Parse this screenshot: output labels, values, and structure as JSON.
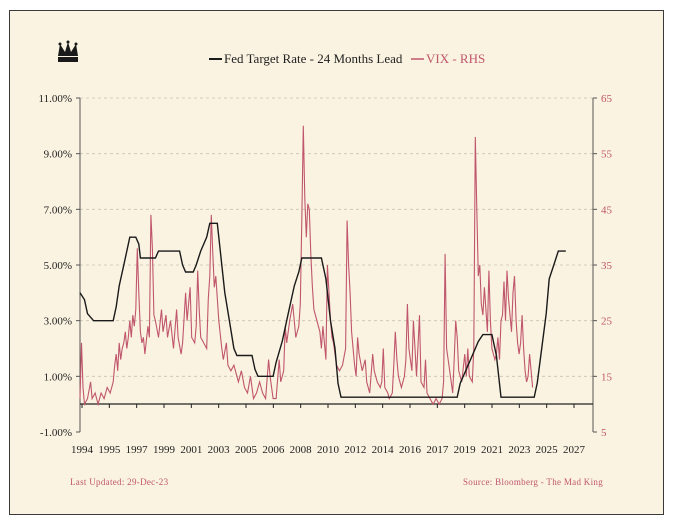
{
  "chart_data": {
    "type": "line",
    "legend": {
      "fed_label": "Fed Target Rate - 24 Months Lead",
      "vix_label": "VIX - RHS",
      "placement": "top-center"
    },
    "footer": {
      "last_updated": "Last Updated:  29-Dec-23",
      "source": "Source: Bloomberg - The Mad King"
    },
    "logo": "crown-icon",
    "colors": {
      "fed": "#1a1a1a",
      "vix": "#c0566c",
      "background": "#faf3e1"
    },
    "grid": "horizontal-dashed",
    "x_axis": {
      "range": [
        1994,
        2028
      ],
      "ticks": [
        "1994",
        "1995",
        "1997",
        "1999",
        "2001",
        "2003",
        "2005",
        "2006",
        "2008",
        "2010",
        "2012",
        "2014",
        "2016",
        "2017",
        "2019",
        "2021",
        "2023",
        "2025",
        "2027"
      ]
    },
    "y_left": {
      "range": [
        -1.0,
        11.0
      ],
      "ticks": [
        11,
        9,
        7,
        5,
        3,
        1,
        -1
      ],
      "tick_labels": [
        "11.00%",
        "9.00%",
        "7.00%",
        "5.00%",
        "3.00%",
        "1.00%",
        "-1.00%"
      ]
    },
    "y_right": {
      "range": [
        5,
        65
      ],
      "ticks": [
        65,
        55,
        45,
        35,
        25,
        15,
        5
      ],
      "tick_labels": [
        "65",
        "55",
        "45",
        "35",
        "25",
        "15",
        "5"
      ]
    },
    "series": [
      {
        "name": "Fed Target Rate - 24 Months Lead",
        "axis": "left",
        "points": [
          [
            1994.0,
            4.0
          ],
          [
            1994.3,
            3.75
          ],
          [
            1994.5,
            3.25
          ],
          [
            1994.9,
            3.0
          ],
          [
            1996.2,
            3.0
          ],
          [
            1996.4,
            3.5
          ],
          [
            1996.6,
            4.25
          ],
          [
            1996.9,
            5.0
          ],
          [
            1997.1,
            5.5
          ],
          [
            1997.3,
            6.0
          ],
          [
            1997.7,
            6.0
          ],
          [
            1997.9,
            5.75
          ],
          [
            1998.0,
            5.25
          ],
          [
            1999.0,
            5.25
          ],
          [
            1999.2,
            5.5
          ],
          [
            2000.6,
            5.5
          ],
          [
            2000.8,
            5.0
          ],
          [
            2001.0,
            4.75
          ],
          [
            2001.5,
            4.75
          ],
          [
            2001.7,
            5.0
          ],
          [
            2002.0,
            5.5
          ],
          [
            2002.4,
            6.0
          ],
          [
            2002.6,
            6.5
          ],
          [
            2003.1,
            6.5
          ],
          [
            2003.3,
            5.5
          ],
          [
            2003.6,
            4.0
          ],
          [
            2003.9,
            3.0
          ],
          [
            2004.2,
            2.0
          ],
          [
            2004.4,
            1.75
          ],
          [
            2005.4,
            1.75
          ],
          [
            2005.6,
            1.25
          ],
          [
            2005.8,
            1.0
          ],
          [
            2006.8,
            1.0
          ],
          [
            2007.0,
            1.5
          ],
          [
            2007.4,
            2.25
          ],
          [
            2007.8,
            3.25
          ],
          [
            2008.2,
            4.25
          ],
          [
            2008.5,
            4.75
          ],
          [
            2008.7,
            5.25
          ],
          [
            2010.0,
            5.25
          ],
          [
            2010.3,
            4.5
          ],
          [
            2010.6,
            3.0
          ],
          [
            2010.9,
            2.0
          ],
          [
            2011.1,
            0.75
          ],
          [
            2011.3,
            0.25
          ],
          [
            2019.0,
            0.25
          ],
          [
            2019.2,
            0.75
          ],
          [
            2019.6,
            1.25
          ],
          [
            2020.0,
            1.75
          ],
          [
            2020.4,
            2.25
          ],
          [
            2020.7,
            2.5
          ],
          [
            2021.3,
            2.5
          ],
          [
            2021.6,
            1.75
          ],
          [
            2021.9,
            0.25
          ],
          [
            2024.1,
            0.25
          ],
          [
            2024.3,
            0.75
          ],
          [
            2024.6,
            2.0
          ],
          [
            2024.9,
            3.25
          ],
          [
            2025.1,
            4.5
          ],
          [
            2025.4,
            5.0
          ],
          [
            2025.7,
            5.5
          ],
          [
            2026.2,
            5.5
          ]
        ]
      },
      {
        "name": "VIX - RHS",
        "axis": "right",
        "points": [
          [
            1994.0,
            11
          ],
          [
            1994.1,
            21
          ],
          [
            1994.2,
            13
          ],
          [
            1994.3,
            10
          ],
          [
            1994.5,
            11
          ],
          [
            1994.7,
            14
          ],
          [
            1994.8,
            11
          ],
          [
            1995.0,
            12
          ],
          [
            1995.2,
            10
          ],
          [
            1995.4,
            12
          ],
          [
            1995.6,
            11
          ],
          [
            1995.8,
            13
          ],
          [
            1996.0,
            12
          ],
          [
            1996.2,
            14
          ],
          [
            1996.3,
            17
          ],
          [
            1996.4,
            19
          ],
          [
            1996.5,
            16
          ],
          [
            1996.6,
            21
          ],
          [
            1996.7,
            18
          ],
          [
            1996.8,
            20
          ],
          [
            1996.9,
            21
          ],
          [
            1997.0,
            23
          ],
          [
            1997.1,
            20
          ],
          [
            1997.2,
            22
          ],
          [
            1997.3,
            25
          ],
          [
            1997.4,
            22
          ],
          [
            1997.5,
            26
          ],
          [
            1997.6,
            24
          ],
          [
            1997.7,
            27
          ],
          [
            1997.8,
            38
          ],
          [
            1997.9,
            30
          ],
          [
            1998.0,
            23
          ],
          [
            1998.1,
            21
          ],
          [
            1998.2,
            22
          ],
          [
            1998.3,
            19
          ],
          [
            1998.5,
            24
          ],
          [
            1998.6,
            22
          ],
          [
            1998.7,
            44
          ],
          [
            1998.8,
            38
          ],
          [
            1998.9,
            26
          ],
          [
            1999.0,
            25
          ],
          [
            1999.2,
            22
          ],
          [
            1999.4,
            27
          ],
          [
            1999.5,
            23
          ],
          [
            1999.7,
            26
          ],
          [
            1999.8,
            22
          ],
          [
            2000.0,
            25
          ],
          [
            2000.2,
            20
          ],
          [
            2000.4,
            27
          ],
          [
            2000.5,
            22
          ],
          [
            2000.7,
            19
          ],
          [
            2000.8,
            21
          ],
          [
            2001.0,
            30
          ],
          [
            2001.1,
            25
          ],
          [
            2001.3,
            31
          ],
          [
            2001.4,
            22
          ],
          [
            2001.6,
            21
          ],
          [
            2001.7,
            24
          ],
          [
            2001.8,
            34
          ],
          [
            2001.9,
            27
          ],
          [
            2002.0,
            22
          ],
          [
            2002.2,
            21
          ],
          [
            2002.4,
            20
          ],
          [
            2002.5,
            29
          ],
          [
            2002.6,
            33
          ],
          [
            2002.7,
            44
          ],
          [
            2002.8,
            37
          ],
          [
            2002.9,
            31
          ],
          [
            2003.0,
            33
          ],
          [
            2003.1,
            29
          ],
          [
            2003.2,
            25
          ],
          [
            2003.4,
            20
          ],
          [
            2003.5,
            18
          ],
          [
            2003.7,
            21
          ],
          [
            2003.8,
            17
          ],
          [
            2004.0,
            16
          ],
          [
            2004.2,
            17
          ],
          [
            2004.4,
            15
          ],
          [
            2004.5,
            14
          ],
          [
            2004.7,
            16
          ],
          [
            2004.9,
            13
          ],
          [
            2005.1,
            12
          ],
          [
            2005.3,
            15
          ],
          [
            2005.5,
            11
          ],
          [
            2005.7,
            12
          ],
          [
            2005.9,
            14
          ],
          [
            2006.1,
            12
          ],
          [
            2006.3,
            11
          ],
          [
            2006.5,
            18
          ],
          [
            2006.6,
            15
          ],
          [
            2006.8,
            11
          ],
          [
            2007.0,
            11
          ],
          [
            2007.2,
            18
          ],
          [
            2007.3,
            14
          ],
          [
            2007.5,
            16
          ],
          [
            2007.6,
            24
          ],
          [
            2007.7,
            21
          ],
          [
            2007.9,
            25
          ],
          [
            2008.1,
            28
          ],
          [
            2008.3,
            22
          ],
          [
            2008.5,
            24
          ],
          [
            2008.6,
            28
          ],
          [
            2008.7,
            43
          ],
          [
            2008.8,
            60
          ],
          [
            2008.9,
            47
          ],
          [
            2009.0,
            40
          ],
          [
            2009.1,
            46
          ],
          [
            2009.2,
            45
          ],
          [
            2009.3,
            37
          ],
          [
            2009.4,
            31
          ],
          [
            2009.5,
            27
          ],
          [
            2009.7,
            25
          ],
          [
            2009.9,
            23
          ],
          [
            2010.0,
            20
          ],
          [
            2010.1,
            24
          ],
          [
            2010.3,
            18
          ],
          [
            2010.4,
            35
          ],
          [
            2010.5,
            30
          ],
          [
            2010.6,
            25
          ],
          [
            2010.7,
            22
          ],
          [
            2010.8,
            21
          ],
          [
            2010.9,
            19
          ],
          [
            2011.0,
            17
          ],
          [
            2011.2,
            16
          ],
          [
            2011.4,
            17
          ],
          [
            2011.6,
            20
          ],
          [
            2011.7,
            43
          ],
          [
            2011.8,
            35
          ],
          [
            2011.9,
            30
          ],
          [
            2012.0,
            23
          ],
          [
            2012.2,
            17
          ],
          [
            2012.3,
            15
          ],
          [
            2012.4,
            22
          ],
          [
            2012.5,
            19
          ],
          [
            2012.7,
            16
          ],
          [
            2012.9,
            18
          ],
          [
            2013.0,
            14
          ],
          [
            2013.2,
            12
          ],
          [
            2013.4,
            19
          ],
          [
            2013.5,
            16
          ],
          [
            2013.7,
            14
          ],
          [
            2013.9,
            13
          ],
          [
            2014.0,
            14
          ],
          [
            2014.1,
            20
          ],
          [
            2014.2,
            13
          ],
          [
            2014.4,
            12
          ],
          [
            2014.5,
            11
          ],
          [
            2014.7,
            12
          ],
          [
            2014.8,
            17
          ],
          [
            2014.9,
            23
          ],
          [
            2015.0,
            18
          ],
          [
            2015.1,
            15
          ],
          [
            2015.3,
            13
          ],
          [
            2015.5,
            15
          ],
          [
            2015.6,
            18
          ],
          [
            2015.7,
            28
          ],
          [
            2015.8,
            20
          ],
          [
            2016.0,
            16
          ],
          [
            2016.1,
            25
          ],
          [
            2016.2,
            20
          ],
          [
            2016.3,
            15
          ],
          [
            2016.5,
            26
          ],
          [
            2016.6,
            14
          ],
          [
            2016.8,
            13
          ],
          [
            2016.9,
            18
          ],
          [
            2017.0,
            12
          ],
          [
            2017.2,
            11
          ],
          [
            2017.4,
            10
          ],
          [
            2017.6,
            11
          ],
          [
            2017.8,
            10
          ],
          [
            2018.0,
            11
          ],
          [
            2018.1,
            14
          ],
          [
            2018.2,
            37
          ],
          [
            2018.3,
            20
          ],
          [
            2018.5,
            16
          ],
          [
            2018.7,
            12
          ],
          [
            2018.8,
            18
          ],
          [
            2018.9,
            25
          ],
          [
            2019.0,
            22
          ],
          [
            2019.1,
            16
          ],
          [
            2019.3,
            14
          ],
          [
            2019.5,
            19
          ],
          [
            2019.6,
            15
          ],
          [
            2019.7,
            20
          ],
          [
            2019.8,
            15
          ],
          [
            2020.0,
            14
          ],
          [
            2020.1,
            20
          ],
          [
            2020.2,
            58
          ],
          [
            2020.3,
            45
          ],
          [
            2020.4,
            33
          ],
          [
            2020.5,
            35
          ],
          [
            2020.6,
            28
          ],
          [
            2020.7,
            26
          ],
          [
            2020.8,
            31
          ],
          [
            2020.9,
            27
          ],
          [
            2021.0,
            23
          ],
          [
            2021.1,
            34
          ],
          [
            2021.2,
            25
          ],
          [
            2021.3,
            20
          ],
          [
            2021.5,
            18
          ],
          [
            2021.6,
            19
          ],
          [
            2021.7,
            22
          ],
          [
            2021.8,
            18
          ],
          [
            2021.9,
            25
          ],
          [
            2022.0,
            26
          ],
          [
            2022.1,
            32
          ],
          [
            2022.2,
            25
          ],
          [
            2022.3,
            34
          ],
          [
            2022.4,
            29
          ],
          [
            2022.5,
            26
          ],
          [
            2022.6,
            23
          ],
          [
            2022.7,
            30
          ],
          [
            2022.8,
            33
          ],
          [
            2022.9,
            25
          ],
          [
            2023.0,
            21
          ],
          [
            2023.1,
            19
          ],
          [
            2023.2,
            21
          ],
          [
            2023.3,
            26
          ],
          [
            2023.4,
            20
          ],
          [
            2023.5,
            16
          ],
          [
            2023.6,
            14
          ],
          [
            2023.7,
            15
          ],
          [
            2023.8,
            19
          ],
          [
            2023.9,
            16
          ],
          [
            2024.0,
            13
          ]
        ]
      }
    ]
  }
}
